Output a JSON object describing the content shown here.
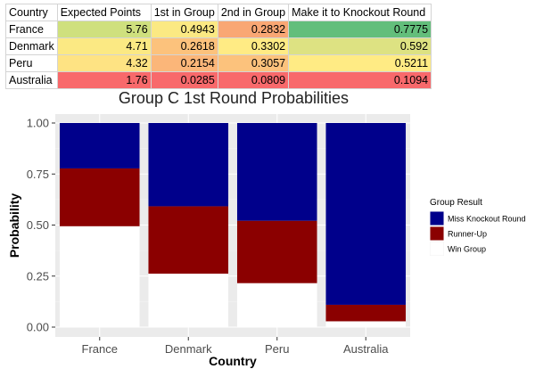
{
  "table": {
    "headers": [
      "Country",
      "Expected Points",
      "1st in Group",
      "2nd in Group",
      "Make it to Knockout Round"
    ],
    "rows": [
      {
        "cells": [
          "France",
          "5.76",
          "0.4943",
          "0.2832",
          "0.7775"
        ],
        "colors": [
          "#ffffff",
          "#cfe07e",
          "#fbe983",
          "#f9a774",
          "#63be7b"
        ]
      },
      {
        "cells": [
          "Denmark",
          "4.71",
          "0.2618",
          "0.3302",
          "0.592"
        ],
        "colors": [
          "#ffffff",
          "#fbe983",
          "#fcc27c",
          "#ffeb84",
          "#dde282"
        ]
      },
      {
        "cells": [
          "Peru",
          "4.32",
          "0.2154",
          "0.3057",
          "0.5211"
        ],
        "colors": [
          "#ffffff",
          "#fee383",
          "#fbb679",
          "#fcc27c",
          "#ffeb84"
        ]
      },
      {
        "cells": [
          "Australia",
          "1.76",
          "0.0285",
          "0.0809",
          "0.1094"
        ],
        "colors": [
          "#ffffff",
          "#f8696b",
          "#f8696b",
          "#f8696b",
          "#f8696b"
        ]
      }
    ]
  },
  "chart_data": {
    "type": "bar",
    "stacked": true,
    "title": "Group C 1st Round Probabilities",
    "xlabel": "Country",
    "ylabel": "Probability",
    "categories": [
      "France",
      "Denmark",
      "Peru",
      "Australia"
    ],
    "ylim": [
      0,
      1
    ],
    "yticks": [
      "0.00",
      "0.25",
      "0.50",
      "0.75",
      "1.00"
    ],
    "ytick_values": [
      0,
      0.25,
      0.5,
      0.75,
      1
    ],
    "grid": true,
    "legend_title": "Group Result",
    "legend_position": "right",
    "series": [
      {
        "name": "Win Group",
        "color": "#ffffff",
        "values": [
          0.4943,
          0.2618,
          0.2154,
          0.0285
        ]
      },
      {
        "name": "Runner-Up",
        "color": "#8b0000",
        "values": [
          0.2832,
          0.3302,
          0.3057,
          0.0809
        ]
      },
      {
        "name": "Miss Knockout Round",
        "color": "#00008b",
        "values": [
          0.2225,
          0.408,
          0.4789,
          0.8906
        ]
      }
    ],
    "legend_order": [
      "Miss Knockout Round",
      "Runner-Up",
      "Win Group"
    ]
  }
}
